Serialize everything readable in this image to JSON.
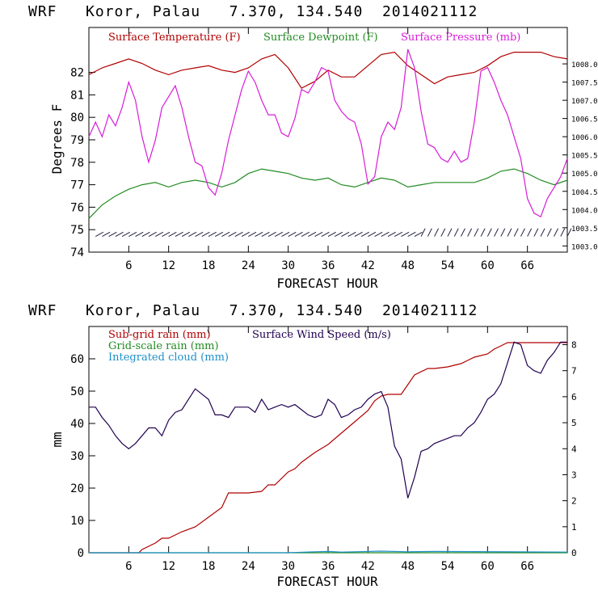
{
  "chart_data": [
    {
      "type": "line",
      "title": "WRF   Koror, Palau   7.370, 134.540  2014021112",
      "xlabel": "FORECAST HOUR",
      "ylabel": "Degrees F",
      "xlim": [
        0,
        72
      ],
      "ylim": [
        74,
        84
      ],
      "y2lim": [
        1002.83,
        1009.0
      ],
      "x_ticks": [
        "6",
        "12",
        "18",
        "24",
        "30",
        "36",
        "42",
        "48",
        "54",
        "60",
        "66"
      ],
      "y_ticks": [
        "74",
        "75",
        "76",
        "77",
        "78",
        "79",
        "80",
        "81",
        "82"
      ],
      "y2_ticks": [
        "1003.0",
        "1003.5",
        "1004.0",
        "1004.5",
        "1005.0",
        "1005.5",
        "1006.0",
        "1006.5",
        "1007.0",
        "1007.5",
        "1008.0"
      ],
      "legend": [
        "Surface Temperature (F)",
        "Surface Dewpoint (F)",
        "Surface Pressure (mb)"
      ],
      "colors": {
        "temperature": "#b00000",
        "dewpoint": "#228b22",
        "pressure": "#d81cd8",
        "wind": "#202040"
      },
      "series": [
        {
          "name": "Surface Temperature (F)",
          "axis": "left",
          "x": [
            0,
            2,
            4,
            6,
            8,
            10,
            12,
            14,
            16,
            18,
            20,
            22,
            24,
            26,
            28,
            30,
            32,
            34,
            36,
            38,
            40,
            42,
            44,
            46,
            48,
            50,
            52,
            54,
            56,
            58,
            60,
            62,
            64,
            66,
            68,
            70,
            72
          ],
          "y": [
            81.9,
            82.2,
            82.4,
            82.6,
            82.4,
            82.1,
            81.9,
            82.1,
            82.2,
            82.3,
            82.1,
            82.0,
            82.2,
            82.6,
            82.8,
            82.2,
            81.3,
            81.6,
            82.1,
            81.8,
            81.8,
            82.3,
            82.8,
            82.9,
            82.3,
            81.9,
            81.5,
            81.8,
            81.9,
            82.0,
            82.3,
            82.7,
            82.9,
            82.9,
            82.9,
            82.7,
            82.6
          ]
        },
        {
          "name": "Surface Dewpoint (F)",
          "axis": "left",
          "x": [
            0,
            2,
            4,
            6,
            8,
            10,
            12,
            14,
            16,
            18,
            20,
            22,
            24,
            26,
            28,
            30,
            32,
            34,
            36,
            38,
            40,
            42,
            44,
            46,
            48,
            50,
            52,
            54,
            56,
            58,
            60,
            62,
            64,
            66,
            68,
            70,
            72
          ],
          "y": [
            75.5,
            76.1,
            76.5,
            76.8,
            77.0,
            77.1,
            76.9,
            77.1,
            77.2,
            77.1,
            76.9,
            77.1,
            77.5,
            77.7,
            77.6,
            77.5,
            77.3,
            77.2,
            77.3,
            77.0,
            76.9,
            77.1,
            77.3,
            77.2,
            76.9,
            77.0,
            77.1,
            77.1,
            77.1,
            77.1,
            77.3,
            77.6,
            77.7,
            77.5,
            77.2,
            77.0,
            77.2
          ]
        },
        {
          "name": "Surface Pressure (mb)",
          "axis": "right",
          "x": [
            0,
            1,
            2,
            3,
            4,
            5,
            6,
            7,
            8,
            9,
            10,
            11,
            12,
            13,
            14,
            15,
            16,
            17,
            18,
            19,
            20,
            21,
            22,
            23,
            24,
            25,
            26,
            27,
            28,
            29,
            30,
            31,
            32,
            33,
            34,
            35,
            36,
            37,
            38,
            39,
            40,
            41,
            42,
            43,
            44,
            45,
            46,
            47,
            48,
            49,
            50,
            51,
            52,
            53,
            54,
            55,
            56,
            57,
            58,
            59,
            60,
            61,
            62,
            63,
            64,
            65,
            66,
            67,
            68,
            69,
            70,
            71,
            72
          ],
          "y": [
            1006.0,
            1006.4,
            1006.0,
            1006.6,
            1006.3,
            1006.8,
            1007.5,
            1007.0,
            1006.0,
            1005.3,
            1005.9,
            1006.8,
            1007.1,
            1007.4,
            1006.8,
            1006.0,
            1005.3,
            1005.2,
            1004.6,
            1004.4,
            1005.0,
            1005.9,
            1006.6,
            1007.3,
            1007.8,
            1007.5,
            1007.0,
            1006.6,
            1006.6,
            1006.1,
            1006.0,
            1006.5,
            1007.3,
            1007.2,
            1007.5,
            1007.9,
            1007.8,
            1007.0,
            1006.7,
            1006.5,
            1006.4,
            1005.8,
            1004.7,
            1004.9,
            1006.0,
            1006.4,
            1006.2,
            1006.8,
            1008.4,
            1007.9,
            1006.7,
            1005.8,
            1005.7,
            1005.4,
            1005.3,
            1005.6,
            1005.3,
            1005.4,
            1006.4,
            1007.8,
            1007.9,
            1007.5,
            1007.0,
            1006.6,
            1006.0,
            1005.4,
            1004.3,
            1003.9,
            1003.8,
            1004.3,
            1004.6,
            1004.9,
            1005.4
          ]
        }
      ],
      "wind_barbs": {
        "x_start": 1,
        "x_end": 72,
        "y_level": 74.7
      }
    },
    {
      "type": "line",
      "title": "WRF   Koror, Palau   7.370, 134.540  2014021112",
      "xlabel": "FORECAST HOUR",
      "ylabel": "mm",
      "xlim": [
        0,
        72
      ],
      "ylim": [
        0,
        70
      ],
      "y2lim": [
        0,
        8.7
      ],
      "x_ticks": [
        "6",
        "12",
        "18",
        "24",
        "30",
        "36",
        "42",
        "48",
        "54",
        "60",
        "66"
      ],
      "y_ticks": [
        "0",
        "10",
        "20",
        "30",
        "40",
        "50",
        "60"
      ],
      "y2_ticks": [
        "0",
        "1",
        "2",
        "3",
        "4",
        "5",
        "6",
        "7",
        "8"
      ],
      "legend": [
        "Sub-grid rain (mm)",
        "Grid-scale rain (mm)",
        "Integrated cloud (mm)",
        "Surface Wind Speed (m/s)"
      ],
      "colors": {
        "subgrid": "#b00000",
        "gridscale": "#228b22",
        "cloud": "#1f8fc8",
        "wind": "#200050"
      },
      "series": [
        {
          "name": "Sub-grid rain (mm)",
          "axis": "left",
          "x": [
            0,
            6,
            7.5,
            8,
            10,
            11,
            12,
            13,
            14,
            16,
            18,
            20,
            21,
            24,
            26,
            27,
            28,
            30,
            31,
            32,
            34,
            36,
            38,
            40,
            42,
            43,
            44,
            45,
            46,
            47,
            48,
            49,
            51,
            52,
            54,
            56,
            57,
            58,
            60,
            61,
            62,
            63,
            64,
            66,
            68,
            70,
            72
          ],
          "y": [
            0,
            0,
            0,
            1,
            3,
            4.5,
            4.5,
            5.5,
            6.5,
            8,
            11,
            14,
            18.5,
            18.5,
            19,
            21,
            21,
            25,
            26,
            28,
            31,
            33.5,
            37,
            40.5,
            44,
            47,
            48.5,
            49,
            49,
            49,
            52,
            55,
            57,
            57,
            57.5,
            58.5,
            59.5,
            60.5,
            61.5,
            63,
            64,
            65,
            65,
            65,
            65,
            65,
            65
          ]
        },
        {
          "name": "Grid-scale rain (mm)",
          "axis": "left",
          "x": [
            0,
            72
          ],
          "y": [
            0,
            0
          ]
        },
        {
          "name": "Integrated cloud (mm)",
          "axis": "left",
          "x": [
            0,
            30,
            34,
            36,
            38,
            40,
            44,
            48,
            52,
            72
          ],
          "y": [
            0,
            0,
            0.3,
            0.4,
            0.2,
            0.3,
            0.5,
            0.3,
            0.4,
            0.2
          ]
        },
        {
          "name": "Surface Wind Speed (m/s)",
          "axis": "right",
          "x": [
            0,
            1,
            2,
            3,
            4,
            5,
            6,
            7,
            8,
            9,
            10,
            11,
            12,
            13,
            14,
            15,
            16,
            17,
            18,
            19,
            20,
            21,
            22,
            23,
            24,
            25,
            26,
            27,
            28,
            29,
            30,
            31,
            32,
            33,
            34,
            35,
            36,
            37,
            38,
            39,
            40,
            41,
            42,
            43,
            44,
            45,
            46,
            47,
            48,
            49,
            50,
            51,
            52,
            53,
            54,
            55,
            56,
            57,
            58,
            59,
            60,
            61,
            62,
            63,
            64,
            65,
            66,
            67,
            68,
            69,
            70,
            71,
            72
          ],
          "y": [
            5.6,
            5.6,
            5.2,
            4.9,
            4.5,
            4.2,
            4.0,
            4.2,
            4.5,
            4.8,
            4.8,
            4.5,
            5.1,
            5.4,
            5.5,
            5.9,
            6.3,
            6.1,
            5.9,
            5.3,
            5.3,
            5.2,
            5.6,
            5.6,
            5.6,
            5.4,
            5.9,
            5.5,
            5.6,
            5.7,
            5.6,
            5.7,
            5.5,
            5.3,
            5.2,
            5.3,
            5.9,
            5.7,
            5.2,
            5.3,
            5.5,
            5.6,
            5.9,
            6.1,
            6.2,
            5.6,
            4.1,
            3.6,
            2.1,
            2.9,
            3.9,
            4.0,
            4.2,
            4.3,
            4.4,
            4.5,
            4.5,
            4.8,
            5.0,
            5.4,
            5.9,
            6.1,
            6.5,
            7.3,
            8.1,
            8.0,
            7.2,
            7.0,
            6.9,
            7.4,
            7.7,
            8.1,
            8.1
          ]
        }
      ]
    }
  ]
}
